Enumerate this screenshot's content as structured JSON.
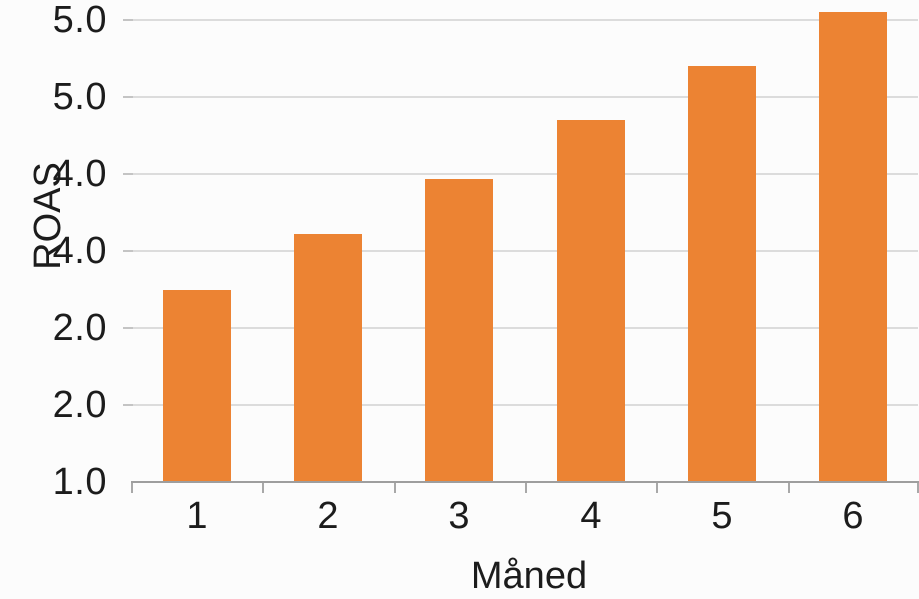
{
  "chart_data": {
    "type": "bar",
    "title": "",
    "xlabel": "Måned",
    "ylabel": "ROAS",
    "categories": [
      "1",
      "2",
      "3",
      "4",
      "5",
      "6"
    ],
    "values": [
      2.7,
      3.1,
      3.6,
      4.1,
      4.6,
      5.1
    ],
    "bar_heights_axis_steps": [
      2.48,
      3.21,
      3.92,
      4.69,
      5.39,
      6.09
    ],
    "y_tick_labels_top_to_bottom": [
      "5.0",
      "5.0",
      "4.0",
      "4.0",
      "2.0",
      "2.0",
      "1.0"
    ],
    "ylim_labels": [
      "1.0",
      "5.0"
    ],
    "grid": true,
    "legend": false
  },
  "colors": {
    "bar": "#EC8333",
    "gridline": "#DCDCDC",
    "grid_stub": "#C4C4C4",
    "axis_line": "#9E9E9E",
    "tick_mark": "#A8A8A8",
    "text": "#1C1C1C",
    "background": "#FCFCFC"
  }
}
